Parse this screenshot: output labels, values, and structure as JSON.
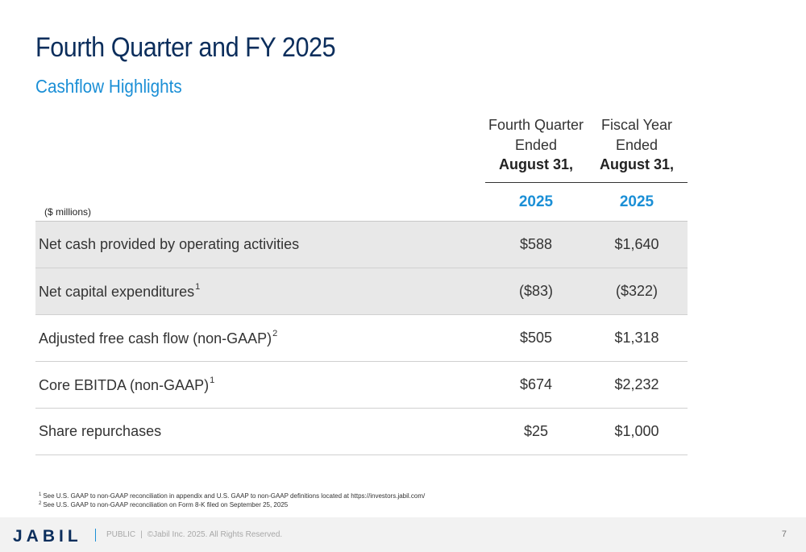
{
  "header": {
    "title": "Fourth Quarter and FY 2025",
    "subtitle": "Cashflow Highlights"
  },
  "table": {
    "unit_note": "($ millions)",
    "columns": [
      {
        "line1": "Fourth Quarter",
        "line2": "Ended",
        "line3": "August 31,",
        "year": "2025"
      },
      {
        "line1": "Fiscal Year",
        "line2": "Ended",
        "line3": "August 31,",
        "year": "2025"
      }
    ],
    "rows": [
      {
        "label": "Net cash provided by operating activities",
        "sup": "",
        "q4": "$588",
        "fy": "$1,640"
      },
      {
        "label": "Net capital expenditures",
        "sup": "1",
        "q4": "($83)",
        "fy": "($322)"
      },
      {
        "label": "Adjusted free cash flow (non-GAAP)",
        "sup": "2",
        "q4": "$505",
        "fy": "$1,318"
      },
      {
        "label": "Core EBITDA (non-GAAP)",
        "sup": "1",
        "q4": "$674",
        "fy": "$2,232"
      },
      {
        "label": "Share repurchases",
        "sup": "",
        "q4": "$25",
        "fy": "$1,000"
      }
    ]
  },
  "footnotes": [
    {
      "num": "1",
      "text": "See U.S. GAAP to non-GAAP reconciliation in appendix and U.S. GAAP to non-GAAP definitions located at https://investors.jabil.com/"
    },
    {
      "num": "2",
      "text": "See U.S. GAAP to non-GAAP reconciliation on Form 8-K filed on September 25, 2025"
    }
  ],
  "footer": {
    "logo": "JABIL",
    "classification": "PUBLIC",
    "copyright": "©Jabil Inc. 2025. All Rights Reserved.",
    "page_number": "7"
  },
  "colors": {
    "title": "#0c2e5c",
    "accent": "#1b8fd6",
    "shaded_row": "#e8e8e8"
  }
}
